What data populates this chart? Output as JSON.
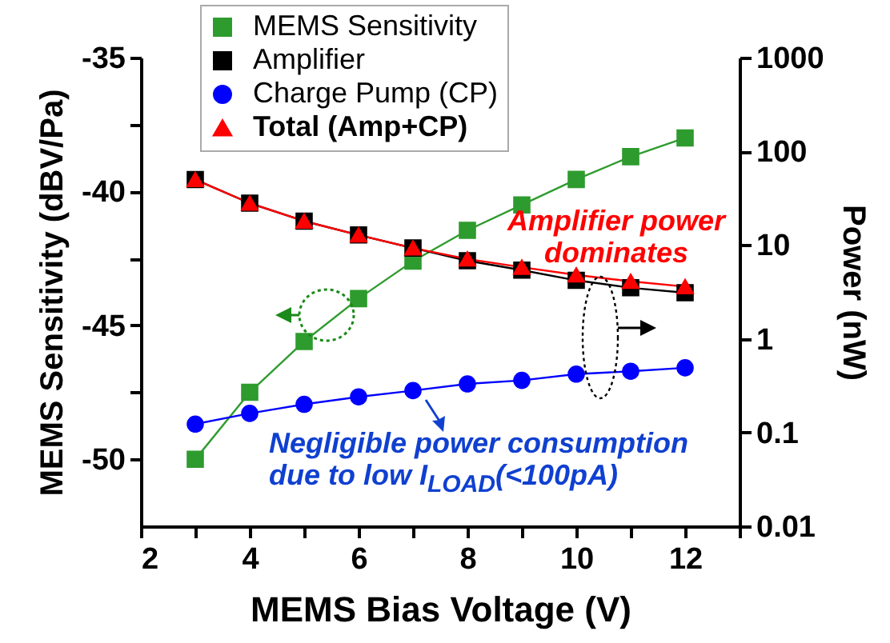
{
  "chart_data": {
    "type": "line",
    "xlabel": "MEMS Bias Voltage (V)",
    "ylabel": "MEMS Sensitivity (dBV/Pa)",
    "y2label": "Power (nW)",
    "x": [
      3,
      4,
      5,
      6,
      7,
      8,
      9,
      10,
      11,
      12
    ],
    "xlim": [
      2,
      13
    ],
    "xticks": [
      2,
      {
        "value": 3,
        "label": null
      },
      4,
      {
        "value": 5,
        "label": null
      },
      6,
      {
        "value": 7,
        "label": null
      },
      8,
      {
        "value": 9,
        "label": null
      },
      10,
      {
        "value": 11,
        "label": null
      },
      12,
      {
        "value": 13,
        "label": null
      }
    ],
    "ylim": [
      -52.5,
      -35
    ],
    "yticks": [
      -50,
      {
        "value": -47.5,
        "label": null
      },
      -45,
      {
        "value": -42.5,
        "label": null
      },
      -40,
      {
        "value": -37.5,
        "label": null
      },
      -35
    ],
    "y2lim": [
      0.01,
      1000
    ],
    "y2ticks": [
      0.01,
      0.1,
      1,
      10,
      100,
      1000
    ],
    "log": "y2",
    "series": [
      {
        "name": "MEMS Sensitivity",
        "color": "#2e9b2e",
        "marker": "square",
        "values": [
          -50,
          -47.5,
          -45.6,
          -44,
          -42.6,
          -41.45,
          -40.5,
          -39.55,
          -38.7,
          -38
        ]
      },
      {
        "name": "Amplifier",
        "color": "#000000",
        "marker": "square",
        "axis": "y2",
        "values": [
          50,
          28,
          18,
          12.8,
          9.3,
          6.8,
          5.4,
          4.2,
          3.5,
          3.1
        ]
      },
      {
        "name": "Charge Pump (CP)",
        "color": "#0000ff",
        "marker": "circle",
        "axis": "y2",
        "values": [
          0.123,
          0.16,
          0.2,
          0.24,
          0.28,
          0.33,
          0.36,
          0.42,
          0.45,
          0.49
        ]
      },
      {
        "name": "Total (Amp+CP)",
        "color": "#ff0000",
        "marker": "triangle",
        "axis": "y2",
        "values": [
          50,
          28,
          18,
          12.8,
          9.3,
          7.1,
          5.8,
          4.8,
          4.1,
          3.6
        ]
      }
    ],
    "legend": "top",
    "grid": false,
    "line_style": "solid",
    "annotations": [
      "Amplifier power dominates",
      "Negligible power consumption due to low I$_{LOAD}$(<100pA)"
    ]
  }
}
